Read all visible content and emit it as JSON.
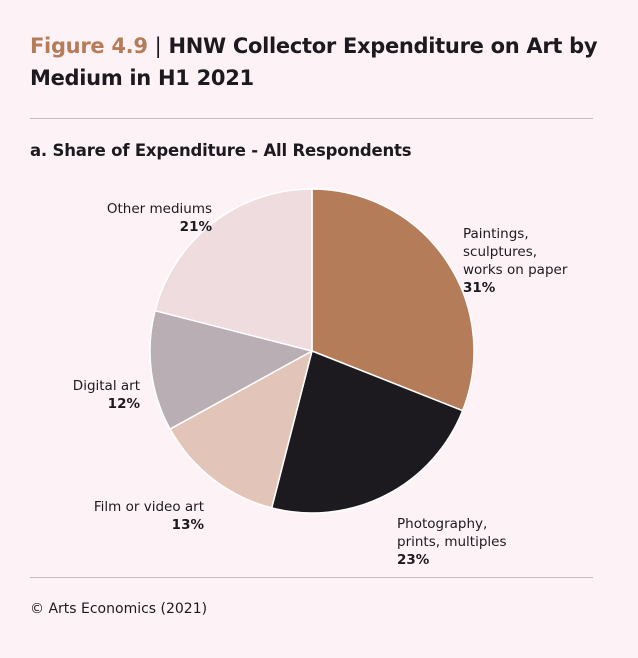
{
  "header": {
    "figure_label": "Figure 4.9",
    "separator": "|",
    "title": "HNW Collector Expenditure on Art by Medium in H1 2021"
  },
  "subtitle": "a. Share of Expenditure - All Respondents",
  "footer": "© Arts Economics (2021)",
  "chart_data": {
    "type": "pie",
    "title": "a. Share of Expenditure - All Respondents",
    "start_angle_deg": 0,
    "direction": "clockwise",
    "slices": [
      {
        "label": "Paintings, sculptures, works on paper",
        "label_lines": "Paintings,\nsculptures,\nworks on paper",
        "value": 31,
        "value_label": "31%",
        "color": "#b57c5a"
      },
      {
        "label": "Photography, prints, multiples",
        "label_lines": "Photography,\nprints, multiples",
        "value": 23,
        "value_label": "23%",
        "color": "#1c1a1f"
      },
      {
        "label": "Film or video art",
        "label_lines": "Film or video art",
        "value": 13,
        "value_label": "13%",
        "color": "#e2c4b8"
      },
      {
        "label": "Digital art",
        "label_lines": "Digital art",
        "value": 12,
        "value_label": "12%",
        "color": "#b8aeb3"
      },
      {
        "label": "Other mediums",
        "label_lines": "Other mediums",
        "value": 21,
        "value_label": "21%",
        "color": "#eedcdf"
      }
    ]
  }
}
